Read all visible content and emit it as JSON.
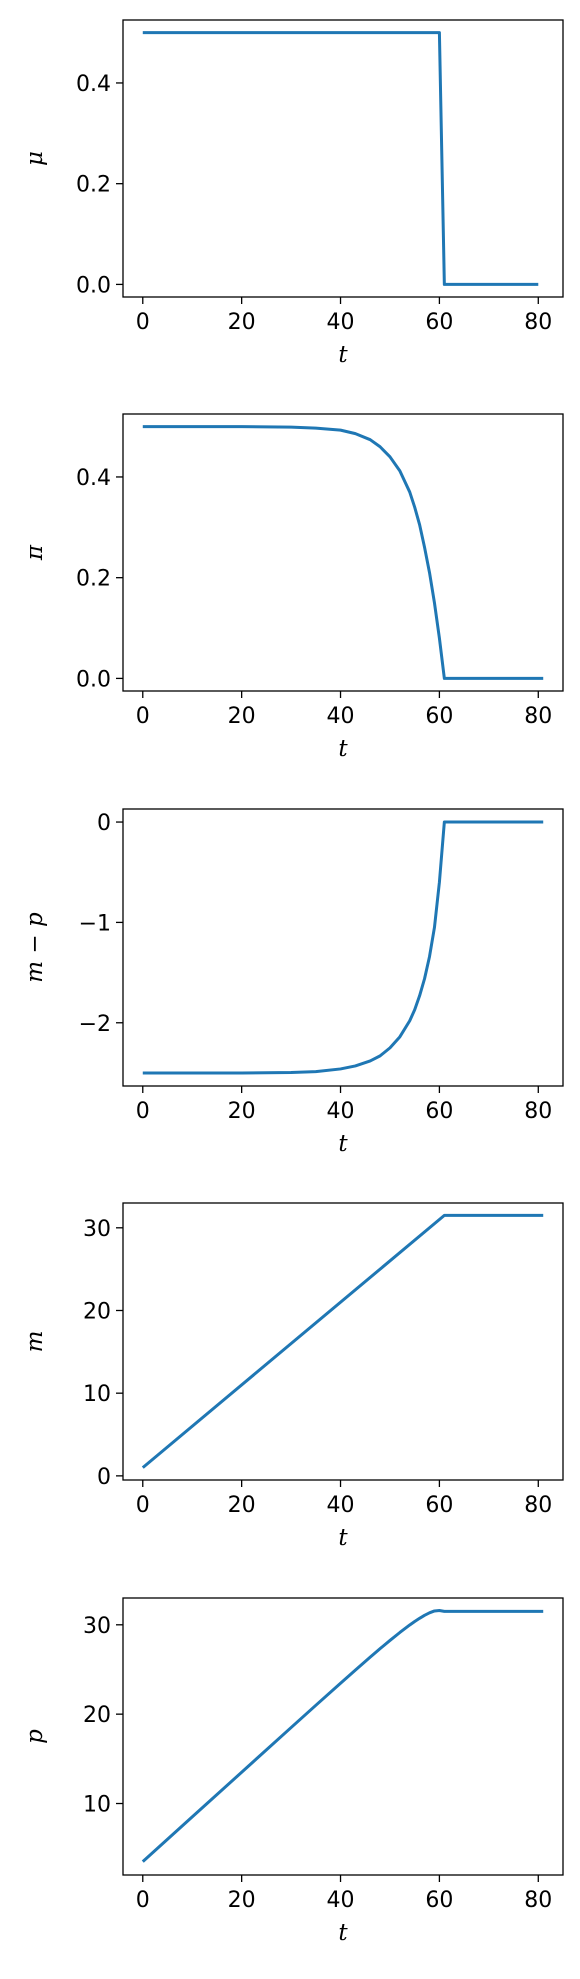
{
  "colors": {
    "series": "#1f77b4"
  },
  "chart_data": [
    {
      "type": "line",
      "xlabel": "t",
      "ylabel": "μ",
      "xlim": [
        -4,
        85
      ],
      "ylim": [
        -0.025,
        0.525
      ],
      "xticks": [
        0,
        20,
        40,
        60,
        80
      ],
      "yticks": [
        0.0,
        0.2,
        0.4
      ],
      "ytick_labels": [
        "0.0",
        "0.2",
        "0.4"
      ],
      "series": [
        {
          "x": [
            0,
            60,
            61,
            80
          ],
          "y": [
            0.5,
            0.5,
            0.0,
            0.0
          ]
        }
      ]
    },
    {
      "type": "line",
      "xlabel": "t",
      "ylabel": "π",
      "xlim": [
        -4,
        85
      ],
      "ylim": [
        -0.025,
        0.525
      ],
      "xticks": [
        0,
        20,
        40,
        60,
        80
      ],
      "yticks": [
        0.0,
        0.2,
        0.4
      ],
      "ytick_labels": [
        "0.0",
        "0.2",
        "0.4"
      ],
      "series": [
        {
          "x": [
            0,
            10,
            20,
            30,
            35,
            40,
            43,
            46,
            48,
            50,
            52,
            54,
            55,
            56,
            57,
            58,
            59,
            60,
            61,
            62,
            70,
            81
          ],
          "y": [
            0.5,
            0.5,
            0.5,
            0.499,
            0.497,
            0.493,
            0.486,
            0.474,
            0.46,
            0.44,
            0.412,
            0.37,
            0.34,
            0.305,
            0.26,
            0.21,
            0.15,
            0.08,
            0.0,
            0.0,
            0.0,
            0.0
          ]
        }
      ]
    },
    {
      "type": "line",
      "xlabel": "t",
      "ylabel": "m − p",
      "xlim": [
        -4,
        85
      ],
      "ylim": [
        -2.63,
        0.13
      ],
      "xticks": [
        0,
        20,
        40,
        60,
        80
      ],
      "yticks": [
        -2,
        -1,
        0
      ],
      "ytick_labels": [
        "−2",
        "−1",
        "0"
      ],
      "series": [
        {
          "x": [
            0,
            10,
            20,
            30,
            35,
            40,
            43,
            46,
            48,
            50,
            52,
            54,
            55,
            56,
            57,
            58,
            59,
            60,
            61,
            62,
            70,
            81
          ],
          "y": [
            -2.5,
            -2.5,
            -2.5,
            -2.495,
            -2.487,
            -2.46,
            -2.43,
            -2.38,
            -2.33,
            -2.25,
            -2.14,
            -1.98,
            -1.87,
            -1.73,
            -1.56,
            -1.34,
            -1.05,
            -0.6,
            0.0,
            0.0,
            0.0,
            0.0
          ]
        }
      ]
    },
    {
      "type": "line",
      "xlabel": "t",
      "ylabel": "m",
      "xlim": [
        -4,
        85
      ],
      "ylim": [
        -0.5,
        33
      ],
      "xticks": [
        0,
        20,
        40,
        60,
        80
      ],
      "yticks": [
        0,
        10,
        20,
        30
      ],
      "ytick_labels": [
        "0",
        "10",
        "20",
        "30"
      ],
      "series": [
        {
          "x": [
            0,
            61,
            81
          ],
          "y": [
            1.0,
            31.5,
            31.5
          ]
        }
      ]
    },
    {
      "type": "line",
      "xlabel": "t",
      "ylabel": "p",
      "xlim": [
        -4,
        85
      ],
      "ylim": [
        2.0,
        33.0
      ],
      "xticks": [
        0,
        20,
        40,
        60,
        80
      ],
      "yticks": [
        10,
        20,
        30
      ],
      "ytick_labels": [
        "10",
        "20",
        "30"
      ],
      "series": [
        {
          "x": [
            0,
            10,
            20,
            30,
            35,
            40,
            43,
            46,
            48,
            50,
            52,
            54,
            55,
            56,
            57,
            58,
            59,
            60,
            61,
            62,
            70,
            81
          ],
          "y": [
            3.5,
            8.5,
            13.5,
            18.5,
            20.99,
            23.46,
            24.93,
            26.38,
            27.33,
            28.25,
            29.14,
            29.98,
            30.37,
            30.73,
            31.06,
            31.34,
            31.55,
            31.6,
            31.5,
            31.5,
            31.5,
            31.5
          ]
        }
      ]
    }
  ]
}
